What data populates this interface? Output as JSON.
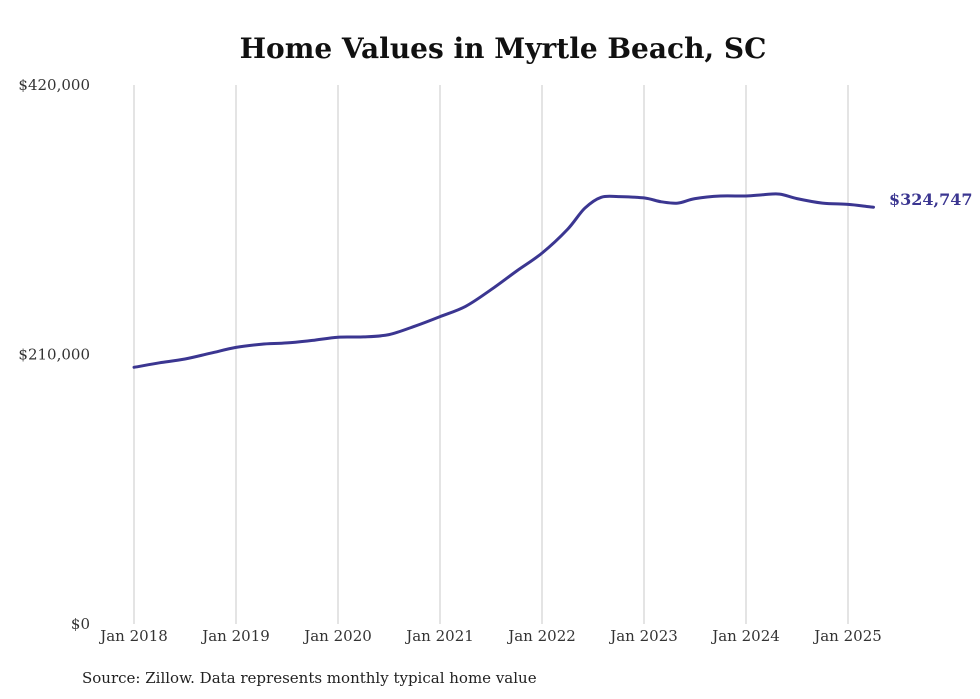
{
  "chart_data": {
    "type": "line",
    "title": "Home Values in Myrtle Beach, SC",
    "xlabel": "",
    "ylabel": "",
    "ylim": [
      0,
      420000
    ],
    "y_ticks": [
      {
        "value": 0,
        "label": "$0"
      },
      {
        "value": 210000,
        "label": "$210,000"
      },
      {
        "value": 420000,
        "label": "$420,000"
      }
    ],
    "x_ticks": [
      {
        "value": 2018.0,
        "label": "Jan 2018"
      },
      {
        "value": 2019.0,
        "label": "Jan 2019"
      },
      {
        "value": 2020.0,
        "label": "Jan 2020"
      },
      {
        "value": 2021.0,
        "label": "Jan 2021"
      },
      {
        "value": 2022.0,
        "label": "Jan 2022"
      },
      {
        "value": 2023.0,
        "label": "Jan 2023"
      },
      {
        "value": 2024.0,
        "label": "Jan 2024"
      },
      {
        "value": 2025.0,
        "label": "Jan 2025"
      }
    ],
    "grid": "vertical",
    "legend": "none",
    "color": "#3b3691",
    "end_label": "$324,747",
    "series": [
      {
        "x": [
          2018.0,
          2018.25,
          2018.5,
          2018.75,
          2019.0,
          2019.25,
          2019.5,
          2019.75,
          2020.0,
          2020.25,
          2020.5,
          2020.75,
          2021.0,
          2021.25,
          2021.5,
          2021.75,
          2022.0,
          2022.25,
          2022.42,
          2022.58,
          2022.75,
          2023.0,
          2023.17,
          2023.33,
          2023.5,
          2023.75,
          2024.0,
          2024.17,
          2024.33,
          2024.5,
          2024.75,
          2025.0,
          2025.17,
          2025.25
        ],
        "values": [
          200000,
          203500,
          206500,
          211000,
          215500,
          218000,
          219000,
          221000,
          223500,
          223700,
          225500,
          232000,
          239500,
          247500,
          260500,
          275000,
          289000,
          307500,
          324000,
          332500,
          333000,
          332000,
          329000,
          328000,
          331500,
          333500,
          333500,
          334500,
          335000,
          331500,
          328000,
          327000,
          325500,
          324747
        ]
      }
    ]
  },
  "source": "Source: Zillow. Data represents monthly typical home value"
}
